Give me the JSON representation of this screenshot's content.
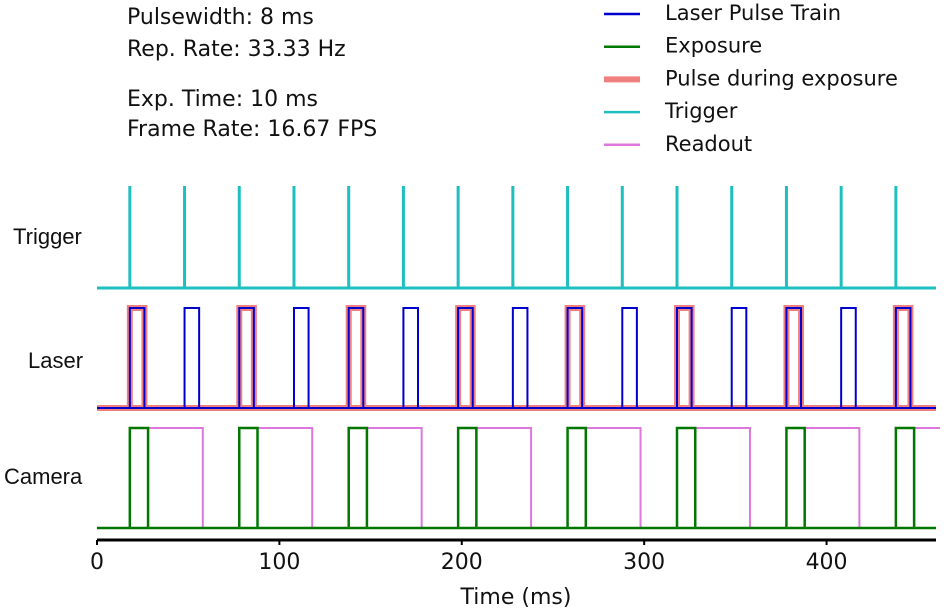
{
  "chart_data": {
    "type": "timing",
    "annotations": [
      "Pulsewidth: 8 ms",
      "Rep. Rate: 33.33 Hz",
      "Exp. Time: 10 ms",
      "Frame Rate: 16.67 FPS"
    ],
    "rows": [
      "Trigger",
      "Laser",
      "Camera"
    ],
    "xlabel": "Time (ms)",
    "xlim": [
      0,
      460
    ],
    "xticks": [
      0,
      100,
      200,
      300,
      400
    ],
    "series": [
      {
        "name": "Laser Pulse Train",
        "color": "#0000cc",
        "width": 8,
        "starts": [
          18,
          48,
          78,
          108,
          138,
          168,
          198,
          228,
          258,
          288,
          318,
          348,
          378,
          408,
          438
        ]
      },
      {
        "name": "Exposure",
        "color": "#007700",
        "width": 10,
        "starts": [
          18,
          78,
          138,
          198,
          258,
          318,
          378,
          438
        ]
      },
      {
        "name": "Pulse during exposure",
        "color": "#f08080",
        "width": 8,
        "starts": [
          18,
          78,
          138,
          198,
          258,
          318,
          378,
          438
        ]
      },
      {
        "name": "Trigger",
        "color": "#1fbfbf",
        "starts": [
          18,
          48,
          78,
          108,
          138,
          168,
          198,
          228,
          258,
          288,
          318,
          348,
          378,
          408,
          438
        ]
      },
      {
        "name": "Readout",
        "color": "#dd77dd",
        "width": 30,
        "starts": [
          28,
          88,
          148,
          208,
          268,
          328,
          388,
          448
        ]
      }
    ],
    "legend": "upper right"
  }
}
